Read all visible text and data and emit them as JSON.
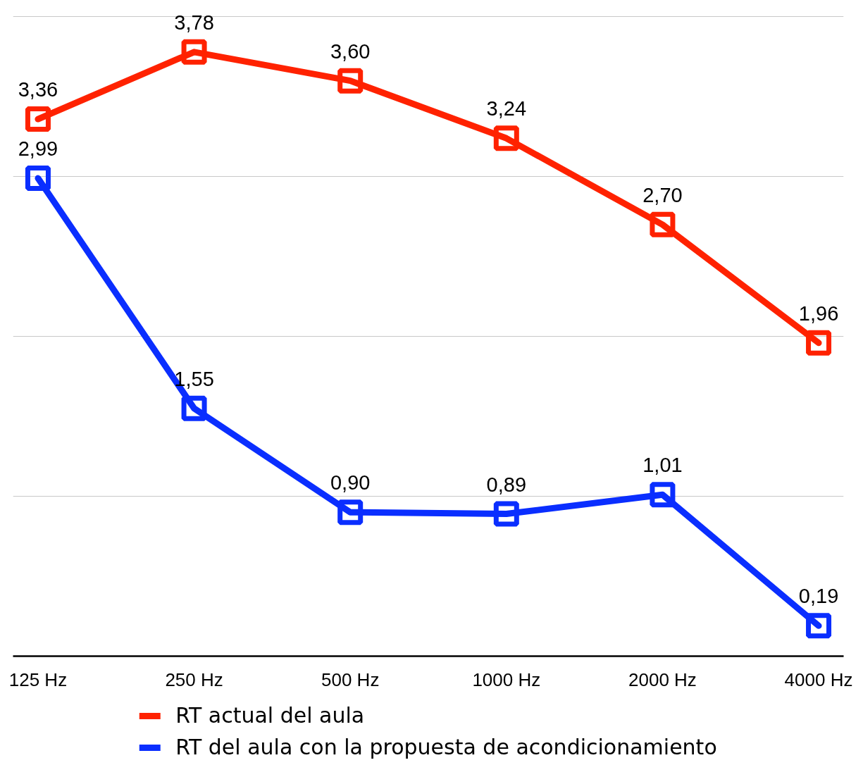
{
  "chart_data": {
    "type": "line",
    "categories": [
      "125 Hz",
      "250 Hz",
      "500 Hz",
      "1000 Hz",
      "2000 Hz",
      "4000 Hz"
    ],
    "series": [
      {
        "name": "RT actual del aula",
        "color": "#ff2200",
        "values": [
          3.36,
          3.78,
          3.6,
          3.24,
          2.7,
          1.96
        ],
        "value_labels": [
          "3,36",
          "3,78",
          "3,60",
          "3,24",
          "2,70",
          "1,96"
        ]
      },
      {
        "name": "RT del aula con la propuesta de acondicionamiento",
        "color": "#0a2eff",
        "values": [
          2.99,
          1.55,
          0.9,
          0.89,
          1.01,
          0.19
        ],
        "value_labels": [
          "2,99",
          "1,55",
          "0,90",
          "0,89",
          "1,01",
          "0,19"
        ]
      }
    ],
    "tick_labels": "x",
    "grid": "y",
    "legend": "bottom",
    "marker": "square",
    "line_style": "solid"
  }
}
